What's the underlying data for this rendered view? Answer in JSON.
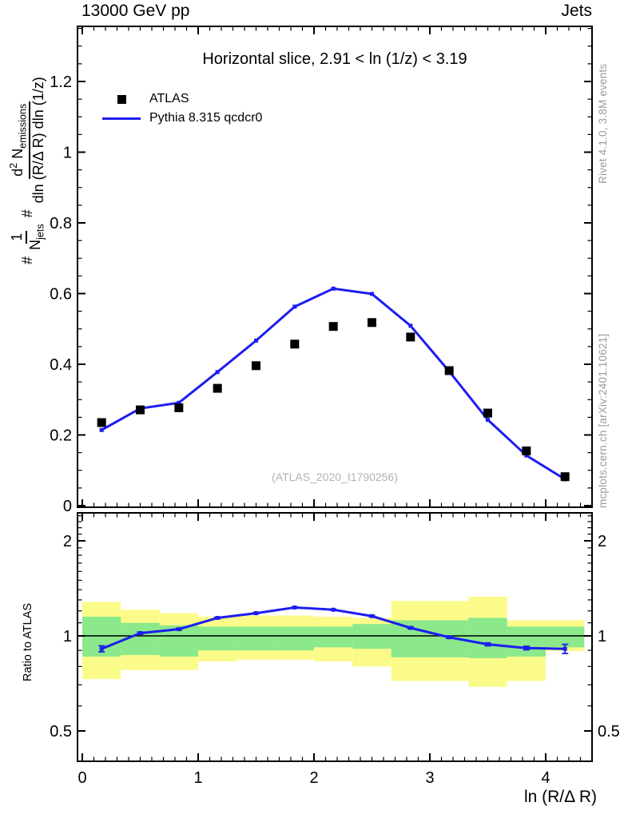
{
  "header": {
    "left": "13000 GeV pp",
    "right": "Jets"
  },
  "title": "Horizontal slice, 2.91 < ln (1/z) < 3.19",
  "legend": [
    {
      "label": "ATLAS",
      "marker": "square",
      "color": "#000000"
    },
    {
      "label": "Pythia 8.315 qcdcr0",
      "marker": "line",
      "color": "#1d1df0"
    }
  ],
  "watermark": "(ATLAS_2020_I1790256)",
  "side_notes": {
    "top": "Rivet 4.1.0,  3.8M events",
    "bottom": "mcplots.cern.ch [arXiv:2401.10621]"
  },
  "ratio_label": "Ratio to ATLAS",
  "xlabel": "ln (R/Δ R)",
  "ylabel": {
    "hash1": "#",
    "f1num": "1",
    "f1den_base": "N",
    "f1den_sub": "jets",
    "hash2": "#",
    "f2num_d": "d",
    "f2num_sup": "2",
    "f2num_base": " N",
    "f2num_sub": "emissions",
    "f2den": "dln (R/Δ R) dln (1/z)"
  },
  "colors": {
    "mc_line": "#1d1df0",
    "data_marker": "#000000",
    "band_outer": "#fbfb8a",
    "band_inner": "#8be88b",
    "note_gray": "#9b9b9b",
    "watermark_gray": "#b2b2b2"
  },
  "chart_data": {
    "type": "line",
    "title": "Horizontal slice, 2.91 < ln (1/z) < 3.19",
    "xlabel": "ln (R/Δ R)",
    "ylabel": "# 1/N_jets # d^2 N_emissions / dln (R/Δ R) dln (1/z)",
    "x_centers": [
      0.1667,
      0.5,
      0.8333,
      1.1667,
      1.5,
      1.8333,
      2.1667,
      2.5,
      2.8333,
      3.1667,
      3.5,
      3.8333,
      4.1667
    ],
    "bin_edges": [
      0,
      0.3333,
      0.6667,
      1.0,
      1.3333,
      1.6667,
      2.0,
      2.3333,
      2.6667,
      3.0,
      3.3333,
      3.6667,
      4.0,
      4.3333
    ],
    "series": [
      {
        "name": "ATLAS",
        "style": "scatter-square",
        "color": "#000000",
        "values": [
          0.235,
          0.271,
          0.277,
          0.332,
          0.396,
          0.457,
          0.507,
          0.518,
          0.477,
          0.382,
          0.262,
          0.155,
          0.082
        ]
      },
      {
        "name": "Pythia 8.315 qcdcr0",
        "style": "line-marker",
        "color": "#1d1df0",
        "values": [
          0.214,
          0.275,
          0.291,
          0.378,
          0.467,
          0.563,
          0.614,
          0.599,
          0.509,
          0.38,
          0.243,
          0.142,
          0.0745
        ]
      }
    ],
    "ratio": {
      "label": "Ratio to ATLAS",
      "values": [
        0.91,
        1.02,
        1.05,
        1.14,
        1.18,
        1.23,
        1.21,
        1.155,
        1.06,
        0.99,
        0.94,
        0.915,
        0.91
      ],
      "errors": [
        0.02,
        0.008,
        0.006,
        0.006,
        0.005,
        0.005,
        0.005,
        0.006,
        0.007,
        0.008,
        0.01,
        0.012,
        0.03
      ]
    },
    "bands": {
      "yellow_hi": [
        1.28,
        1.21,
        1.18,
        1.15,
        1.16,
        1.16,
        1.15,
        1.14,
        1.29,
        1.29,
        1.33,
        1.12,
        1.12
      ],
      "yellow_lo": [
        0.73,
        0.78,
        0.78,
        0.83,
        0.84,
        0.84,
        0.83,
        0.8,
        0.72,
        0.72,
        0.69,
        0.72,
        0.895
      ],
      "green_hi": [
        1.15,
        1.1,
        1.08,
        1.07,
        1.07,
        1.07,
        1.07,
        1.09,
        1.12,
        1.12,
        1.14,
        1.07,
        1.07
      ],
      "green_lo": [
        0.86,
        0.87,
        0.86,
        0.9,
        0.9,
        0.9,
        0.92,
        0.91,
        0.855,
        0.855,
        0.85,
        0.86,
        0.92
      ]
    },
    "axes": {
      "x": {
        "min": -0.041,
        "max": 4.4,
        "majors": [
          {
            "v": 0,
            "t": "0"
          },
          {
            "v": 1,
            "t": "1"
          },
          {
            "v": 2,
            "t": "2"
          },
          {
            "v": 3,
            "t": "3"
          },
          {
            "v": 4,
            "t": "4"
          }
        ],
        "minor_step": 0.1
      },
      "y_main": {
        "min": 0,
        "max": 1.356,
        "scale": "linear",
        "majors": [
          {
            "v": 0,
            "t": "0"
          },
          {
            "v": 0.2,
            "t": "0.2"
          },
          {
            "v": 0.4,
            "t": "0.4"
          },
          {
            "v": 0.6,
            "t": "0.6"
          },
          {
            "v": 0.8,
            "t": "0.8"
          },
          {
            "v": 1,
            "t": "1"
          },
          {
            "v": 1.2,
            "t": "1.2"
          }
        ],
        "minor_step": 0.05
      },
      "y_ratio": {
        "min": 0.4,
        "max": 2.45,
        "scale": "log",
        "majors": [
          {
            "v": 0.5,
            "t": "0.5"
          },
          {
            "v": 1,
            "t": "1"
          },
          {
            "v": 2,
            "t": "2"
          }
        ],
        "minors": [
          0.6,
          0.7,
          0.8,
          0.9,
          1.1,
          1.2,
          1.3,
          1.4,
          1.5,
          1.6,
          1.7,
          1.8,
          1.9,
          2.1,
          2.2,
          2.3,
          2.4
        ]
      }
    },
    "legend_position": "top-left",
    "grid": false
  }
}
